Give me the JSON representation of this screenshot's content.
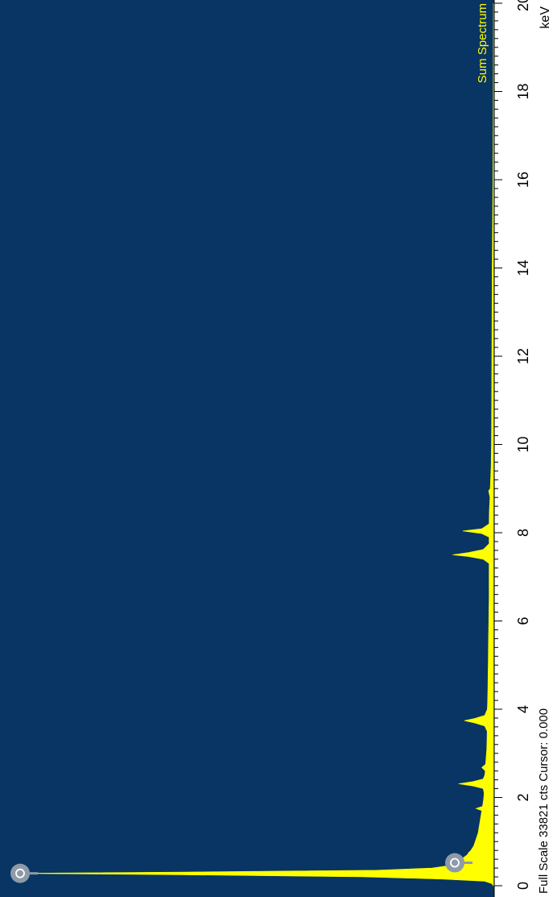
{
  "chart_data": {
    "type": "area",
    "title": "Sum Spectrum",
    "xlabel": "keV",
    "ylabel": "",
    "xlim": [
      0,
      20
    ],
    "ylim": [
      0,
      33821
    ],
    "x_ticks": [
      "0",
      "2",
      "4",
      "6",
      "8",
      "10",
      "12",
      "14",
      "16",
      "18",
      "20"
    ],
    "x_tick_values": [
      0,
      2,
      4,
      6,
      8,
      10,
      12,
      14,
      16,
      18,
      20
    ],
    "footer": "Full Scale 33821 cts Cursor: 0.000",
    "series": [
      {
        "points": [
          [
            0.0,
            0
          ],
          [
            0.05,
            120
          ],
          [
            0.1,
            600
          ],
          [
            0.15,
            3500
          ],
          [
            0.2,
            9000
          ],
          [
            0.25,
            22000
          ],
          [
            0.28,
            33000
          ],
          [
            0.31,
            21000
          ],
          [
            0.35,
            8000
          ],
          [
            0.4,
            4200
          ],
          [
            0.45,
            3200
          ],
          [
            0.5,
            2600
          ],
          [
            0.55,
            2500
          ],
          [
            0.6,
            2200
          ],
          [
            0.65,
            2000
          ],
          [
            0.7,
            1800
          ],
          [
            0.75,
            1700
          ],
          [
            0.8,
            1550
          ],
          [
            0.9,
            1350
          ],
          [
            1.0,
            1250
          ],
          [
            1.1,
            1150
          ],
          [
            1.2,
            1050
          ],
          [
            1.3,
            1000
          ],
          [
            1.4,
            950
          ],
          [
            1.5,
            900
          ],
          [
            1.6,
            850
          ],
          [
            1.7,
            800
          ],
          [
            1.75,
            1200
          ],
          [
            1.8,
            750
          ],
          [
            1.9,
            700
          ],
          [
            2.0,
            660
          ],
          [
            2.1,
            640
          ],
          [
            2.2,
            700
          ],
          [
            2.26,
            1400
          ],
          [
            2.31,
            2400
          ],
          [
            2.36,
            1400
          ],
          [
            2.42,
            700
          ],
          [
            2.5,
            600
          ],
          [
            2.6,
            560
          ],
          [
            2.68,
            800
          ],
          [
            2.75,
            540
          ],
          [
            2.9,
            500
          ],
          [
            3.1,
            460
          ],
          [
            3.3,
            440
          ],
          [
            3.5,
            430
          ],
          [
            3.62,
            600
          ],
          [
            3.69,
            1300
          ],
          [
            3.74,
            2000
          ],
          [
            3.79,
            1300
          ],
          [
            3.86,
            600
          ],
          [
            4.0,
            420
          ],
          [
            4.2,
            400
          ],
          [
            4.5,
            380
          ],
          [
            5.0,
            360
          ],
          [
            5.5,
            340
          ],
          [
            6.0,
            320
          ],
          [
            6.5,
            300
          ],
          [
            7.0,
            300
          ],
          [
            7.3,
            300
          ],
          [
            7.4,
            700
          ],
          [
            7.46,
            1700
          ],
          [
            7.5,
            2800
          ],
          [
            7.55,
            1700
          ],
          [
            7.62,
            700
          ],
          [
            7.75,
            300
          ],
          [
            7.9,
            300
          ],
          [
            7.98,
            800
          ],
          [
            8.04,
            2100
          ],
          [
            8.09,
            800
          ],
          [
            8.2,
            300
          ],
          [
            8.5,
            280
          ],
          [
            8.8,
            240
          ],
          [
            8.95,
            330
          ],
          [
            9.0,
            220
          ],
          [
            9.5,
            160
          ],
          [
            10.0,
            140
          ],
          [
            11.0,
            120
          ],
          [
            12.0,
            110
          ],
          [
            13.0,
            100
          ],
          [
            14.0,
            90
          ],
          [
            15.0,
            60
          ],
          [
            16.0,
            40
          ],
          [
            17.0,
            20
          ],
          [
            18.0,
            10
          ],
          [
            19.0,
            5
          ],
          [
            20.0,
            0
          ]
        ]
      }
    ],
    "markers": [
      {
        "x": 0.28
      },
      {
        "x": 0.52
      }
    ]
  },
  "colors": {
    "background": "#083563",
    "spectrum": "#ffff00",
    "title": "#ffff00",
    "axis_text": "#000000",
    "marker_fill": "#8e9aa8",
    "marker_stroke": "#ffffff"
  }
}
